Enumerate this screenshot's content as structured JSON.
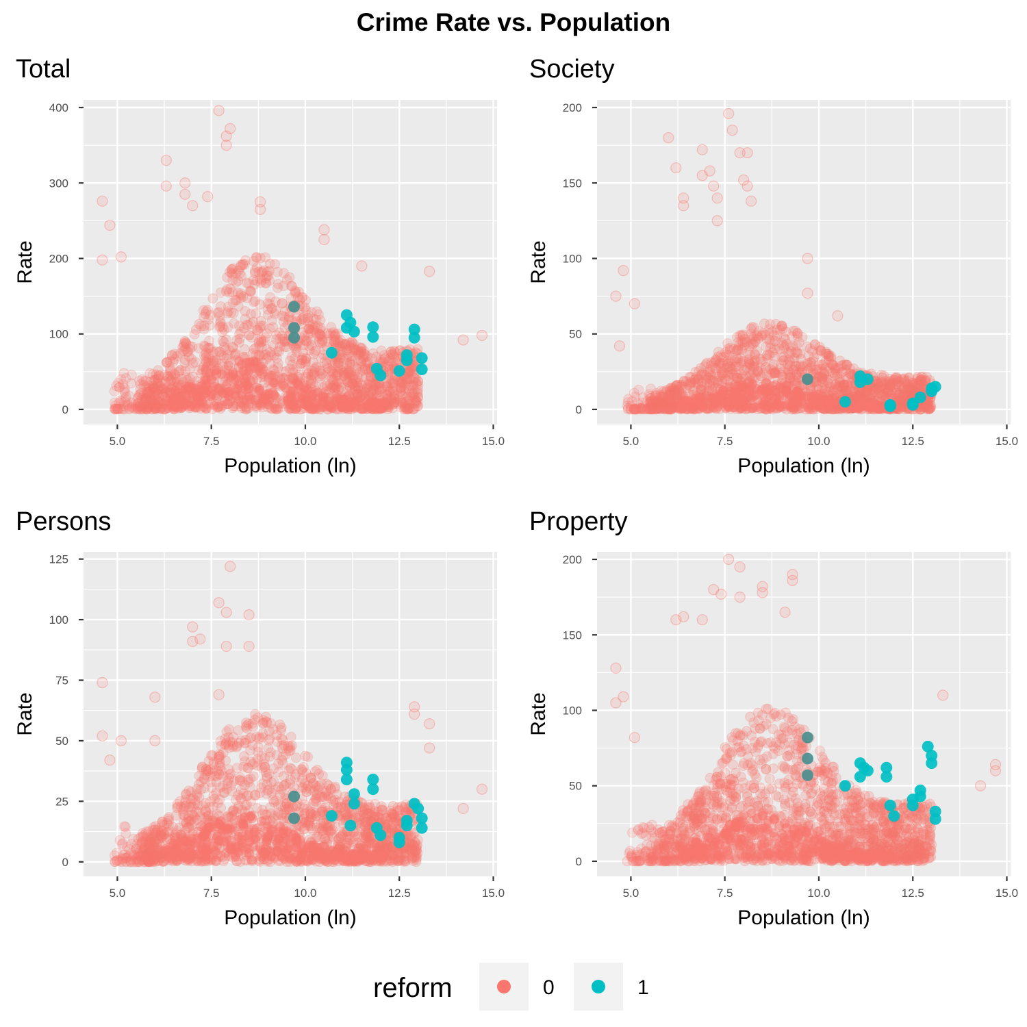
{
  "chart_data": {
    "type": "scatter",
    "title": "Crime Rate vs. Population",
    "legend": {
      "title": "reform",
      "position": "bottom",
      "entries": [
        {
          "label": "0",
          "color": "#F8766D"
        },
        {
          "label": "1",
          "color": "#00BFC4"
        }
      ]
    },
    "grid": true,
    "panels": [
      {
        "name": "Total",
        "xlabel": "Population (ln)",
        "ylabel": "Rate",
        "xlim": [
          4.1,
          15.1
        ],
        "ylim": [
          -20,
          410
        ],
        "xticks": [
          5.0,
          7.5,
          10.0,
          12.5,
          15.0
        ],
        "xtick_labels": [
          "5.0",
          "7.5",
          "10.0",
          "12.5",
          "15.0"
        ],
        "yticks": [
          0,
          100,
          200,
          300,
          400
        ],
        "ytick_labels": [
          "0",
          "100",
          "200",
          "300",
          "400"
        ],
        "cloud": {
          "scale": 1.0,
          "seed": 11
        },
        "outliers": [
          [
            4.6,
            276
          ],
          [
            4.6,
            198
          ],
          [
            4.8,
            244
          ],
          [
            5.1,
            202
          ],
          [
            6.3,
            330
          ],
          [
            6.3,
            296
          ],
          [
            6.8,
            300
          ],
          [
            6.8,
            285
          ],
          [
            7.0,
            270
          ],
          [
            7.4,
            282
          ],
          [
            7.7,
            396
          ],
          [
            7.9,
            362
          ],
          [
            8.0,
            372
          ],
          [
            7.9,
            350
          ],
          [
            8.8,
            275
          ],
          [
            8.8,
            265
          ],
          [
            10.5,
            238
          ],
          [
            10.5,
            225
          ],
          [
            11.5,
            190
          ],
          [
            13.3,
            183
          ],
          [
            14.7,
            98
          ],
          [
            14.2,
            92
          ]
        ],
        "reform1": [
          [
            9.7,
            136
          ],
          [
            9.7,
            108
          ],
          [
            9.7,
            95
          ],
          [
            10.7,
            75
          ],
          [
            11.1,
            125
          ],
          [
            11.1,
            108
          ],
          [
            11.2,
            115
          ],
          [
            11.3,
            103
          ],
          [
            11.8,
            109
          ],
          [
            11.8,
            96
          ],
          [
            11.9,
            54
          ],
          [
            12.0,
            45
          ],
          [
            12.5,
            51
          ],
          [
            12.7,
            72
          ],
          [
            12.7,
            65
          ],
          [
            12.9,
            106
          ],
          [
            12.9,
            95
          ],
          [
            13.1,
            68
          ],
          [
            13.1,
            53
          ]
        ]
      },
      {
        "name": "Society",
        "xlabel": "Population (ln)",
        "ylabel": "Rate",
        "xlim": [
          4.1,
          15.1
        ],
        "ylim": [
          -10,
          205
        ],
        "xticks": [
          5.0,
          7.5,
          10.0,
          12.5,
          15.0
        ],
        "xtick_labels": [
          "5.0",
          "7.5",
          "10.0",
          "12.5",
          "15.0"
        ],
        "yticks": [
          0,
          50,
          100,
          150,
          200
        ],
        "ytick_labels": [
          "0",
          "50",
          "100",
          "150",
          "200"
        ],
        "cloud": {
          "scale": 0.28,
          "seed": 22
        },
        "outliers": [
          [
            4.6,
            75
          ],
          [
            4.7,
            42
          ],
          [
            4.8,
            92
          ],
          [
            5.1,
            70
          ],
          [
            6.0,
            180
          ],
          [
            6.2,
            160
          ],
          [
            6.4,
            140
          ],
          [
            6.4,
            135
          ],
          [
            6.9,
            172
          ],
          [
            6.9,
            155
          ],
          [
            7.1,
            158
          ],
          [
            7.2,
            148
          ],
          [
            7.3,
            140
          ],
          [
            7.6,
            196
          ],
          [
            7.7,
            185
          ],
          [
            7.9,
            170
          ],
          [
            8.1,
            170
          ],
          [
            8.0,
            152
          ],
          [
            8.1,
            148
          ],
          [
            8.2,
            138
          ],
          [
            7.3,
            125
          ],
          [
            9.7,
            100
          ],
          [
            9.7,
            77
          ],
          [
            10.5,
            62
          ]
        ],
        "reform1": [
          [
            9.7,
            20
          ],
          [
            10.7,
            5
          ],
          [
            11.1,
            22
          ],
          [
            11.1,
            18
          ],
          [
            11.3,
            20
          ],
          [
            11.9,
            3
          ],
          [
            11.9,
            2
          ],
          [
            12.5,
            4
          ],
          [
            12.5,
            3
          ],
          [
            12.7,
            8
          ],
          [
            13.0,
            14
          ],
          [
            13.0,
            12
          ],
          [
            13.1,
            15
          ]
        ]
      },
      {
        "name": "Persons",
        "xlabel": "Population (ln)",
        "ylabel": "Rate",
        "xlim": [
          4.1,
          15.1
        ],
        "ylim": [
          -6,
          128
        ],
        "xticks": [
          5.0,
          7.5,
          10.0,
          12.5,
          15.0
        ],
        "xtick_labels": [
          "5.0",
          "7.5",
          "10.0",
          "12.5",
          "15.0"
        ],
        "yticks": [
          0,
          25,
          50,
          75,
          100,
          125
        ],
        "ytick_labels": [
          "0",
          "25",
          "50",
          "75",
          "100",
          "125"
        ],
        "cloud": {
          "scale": 0.3,
          "seed": 33
        },
        "outliers": [
          [
            4.6,
            74
          ],
          [
            4.6,
            52
          ],
          [
            4.8,
            42
          ],
          [
            5.1,
            50
          ],
          [
            6.0,
            68
          ],
          [
            6.0,
            50
          ],
          [
            7.0,
            97
          ],
          [
            7.0,
            91
          ],
          [
            7.2,
            92
          ],
          [
            7.7,
            107
          ],
          [
            7.9,
            103
          ],
          [
            7.9,
            89
          ],
          [
            8.0,
            122
          ],
          [
            8.5,
            102
          ],
          [
            8.5,
            89
          ],
          [
            7.7,
            69
          ],
          [
            12.9,
            64
          ],
          [
            12.9,
            61
          ],
          [
            13.3,
            57
          ],
          [
            13.3,
            47
          ],
          [
            14.7,
            30
          ],
          [
            14.2,
            22
          ]
        ],
        "reform1": [
          [
            9.7,
            27
          ],
          [
            9.7,
            18
          ],
          [
            10.7,
            19
          ],
          [
            11.1,
            41
          ],
          [
            11.1,
            38
          ],
          [
            11.1,
            34
          ],
          [
            11.3,
            28
          ],
          [
            11.3,
            24
          ],
          [
            11.2,
            15
          ],
          [
            11.8,
            34
          ],
          [
            11.8,
            30
          ],
          [
            11.9,
            14
          ],
          [
            12.0,
            11
          ],
          [
            12.5,
            10
          ],
          [
            12.5,
            8
          ],
          [
            12.7,
            17
          ],
          [
            12.7,
            15
          ],
          [
            12.9,
            24
          ],
          [
            13.0,
            22
          ],
          [
            13.1,
            18
          ],
          [
            13.1,
            14
          ]
        ]
      },
      {
        "name": "Property",
        "xlabel": "Population (ln)",
        "ylabel": "Rate",
        "xlim": [
          4.1,
          15.1
        ],
        "ylim": [
          -10,
          205
        ],
        "xticks": [
          5.0,
          7.5,
          10.0,
          12.5,
          15.0
        ],
        "xtick_labels": [
          "5.0",
          "7.5",
          "10.0",
          "12.5",
          "15.0"
        ],
        "yticks": [
          0,
          50,
          100,
          150,
          200
        ],
        "ytick_labels": [
          "0",
          "50",
          "100",
          "150",
          "200"
        ],
        "cloud": {
          "scale": 0.5,
          "seed": 44
        },
        "outliers": [
          [
            4.6,
            128
          ],
          [
            4.6,
            105
          ],
          [
            4.8,
            109
          ],
          [
            5.1,
            82
          ],
          [
            6.2,
            160
          ],
          [
            6.4,
            162
          ],
          [
            6.9,
            160
          ],
          [
            7.2,
            180
          ],
          [
            7.4,
            177
          ],
          [
            7.6,
            200
          ],
          [
            7.9,
            195
          ],
          [
            7.9,
            175
          ],
          [
            8.5,
            182
          ],
          [
            8.5,
            178
          ],
          [
            9.3,
            190
          ],
          [
            9.3,
            186
          ],
          [
            9.1,
            165
          ],
          [
            14.7,
            64
          ],
          [
            14.7,
            60
          ],
          [
            14.3,
            50
          ],
          [
            13.3,
            110
          ]
        ],
        "reform1": [
          [
            9.7,
            82
          ],
          [
            9.7,
            68
          ],
          [
            9.7,
            57
          ],
          [
            10.7,
            50
          ],
          [
            11.1,
            65
          ],
          [
            11.1,
            56
          ],
          [
            11.2,
            62
          ],
          [
            11.3,
            60
          ],
          [
            11.8,
            62
          ],
          [
            11.8,
            56
          ],
          [
            11.9,
            37
          ],
          [
            12.0,
            30
          ],
          [
            12.5,
            41
          ],
          [
            12.5,
            37
          ],
          [
            12.7,
            47
          ],
          [
            12.7,
            43
          ],
          [
            12.9,
            76
          ],
          [
            13.0,
            70
          ],
          [
            13.0,
            65
          ],
          [
            13.1,
            33
          ],
          [
            13.1,
            28
          ]
        ]
      }
    ]
  }
}
